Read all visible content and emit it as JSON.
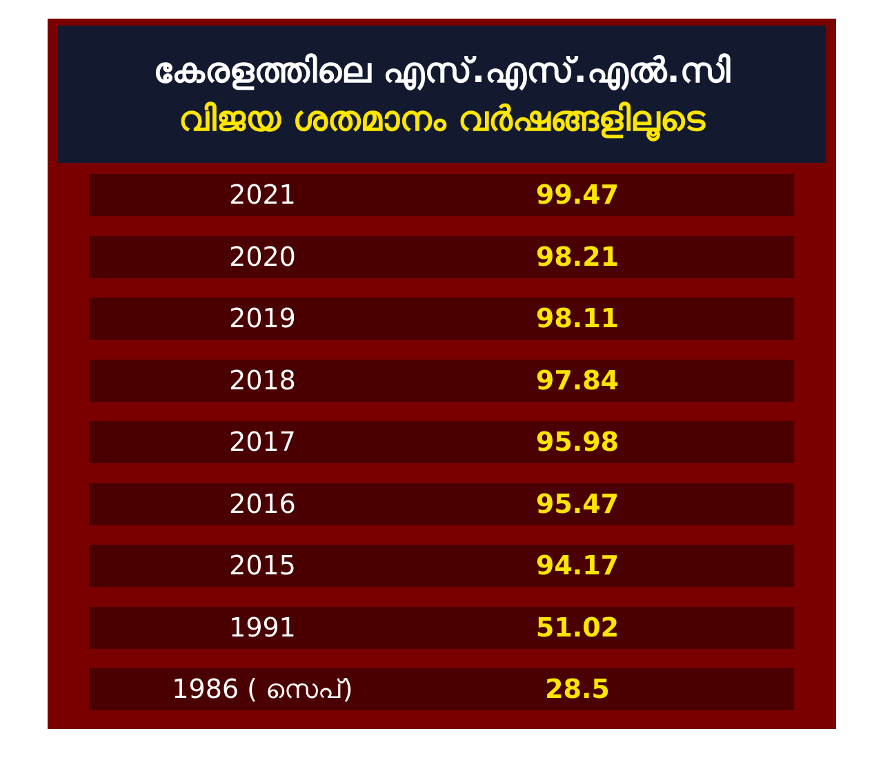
{
  "title": {
    "line1": "കേരളത്തിലെ എസ്.എസ്.എൽ.സി",
    "line2": "വിജയ ശതമാനം വർഷങ്ങളിലൂടെ"
  },
  "colors": {
    "background": "#7a0000",
    "header_bg": "#131a30",
    "row_bg": "#4a0000",
    "year_text": "#ffffff",
    "value_text": "#ffe600"
  },
  "chart_data": {
    "type": "table",
    "title": "കേരളത്തിലെ എസ്.എസ്.എൽ.സി വിജയ ശതമാനം വർഷങ്ങളിലൂടെ",
    "columns": [
      "",
      ""
    ],
    "rows": [
      {
        "year": "2021",
        "value": "99.47"
      },
      {
        "year": "2020",
        "value": "98.21"
      },
      {
        "year": "2019",
        "value": "98.11"
      },
      {
        "year": "2018",
        "value": "97.84"
      },
      {
        "year": "2017",
        "value": "95.98"
      },
      {
        "year": "2016",
        "value": "95.47"
      },
      {
        "year": "2015",
        "value": "94.17"
      },
      {
        "year": "1991",
        "value": "51.02"
      },
      {
        "year": "1986 ( സെപ്)",
        "value": "28.5"
      }
    ]
  }
}
